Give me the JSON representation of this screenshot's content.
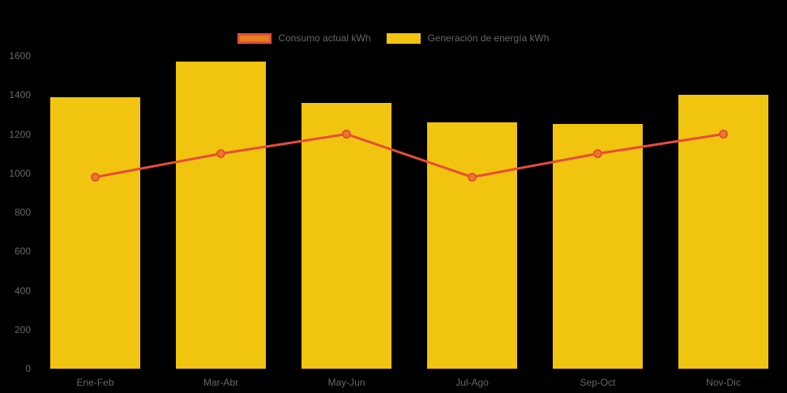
{
  "page": {
    "background": "#000000",
    "text_color": "#666666"
  },
  "legend": {
    "items": [
      {
        "label": "Consumo actual kWh",
        "swatch_fill": "#e67e22",
        "swatch_border": "#e74c3c"
      },
      {
        "label": "Generación de energía kWh",
        "swatch_fill": "#f1c40f",
        "swatch_border": "#f1c40f"
      }
    ]
  },
  "chart_data": {
    "type": "bar",
    "categories": [
      "Ene-Feb",
      "Mar-Abr",
      "May-Jun",
      "Jul-Ago",
      "Sep-Oct",
      "Nov-Dic"
    ],
    "series": [
      {
        "name": "Consumo actual kWh",
        "type": "line",
        "values": [
          980,
          1100,
          1200,
          980,
          1100,
          1200
        ],
        "line_color": "#e74c3c",
        "point_fill": "#e67e22",
        "point_border": "#e74c3c"
      },
      {
        "name": "Generación de energía kWh",
        "type": "bar",
        "values": [
          1390,
          1570,
          1360,
          1260,
          1250,
          1400
        ],
        "bar_color": "#f1c40f"
      }
    ],
    "title": "",
    "xlabel": "",
    "ylabel": "",
    "ylim": [
      0,
      1600
    ],
    "ytick_step": 200,
    "ytick_labels": [
      "0",
      "200",
      "400",
      "600",
      "800",
      "1000",
      "1200",
      "1400",
      "1600"
    ],
    "grid": false,
    "legend_position": "top"
  }
}
